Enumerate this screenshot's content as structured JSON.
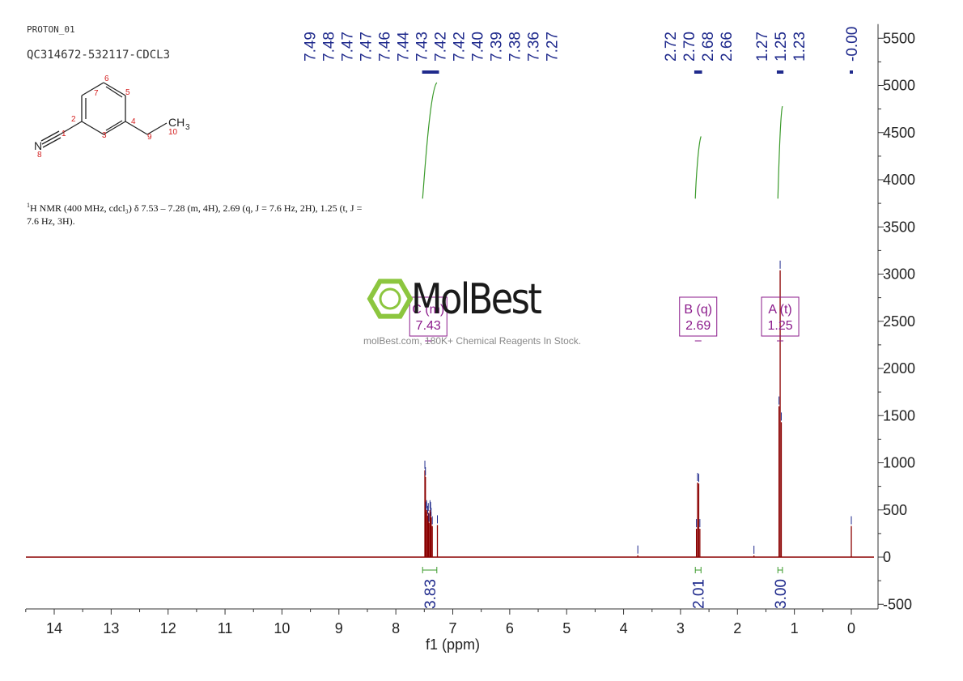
{
  "header": {
    "experiment": "PROTON_01",
    "sample": "QC314672-532117-CDCL3"
  },
  "molecule": {
    "atom_labels": [
      "1",
      "2",
      "3",
      "4",
      "5",
      "6",
      "7",
      "8",
      "9",
      "10"
    ],
    "nitrogen": "N",
    "methyl": "CH",
    "methyl_sub": "3"
  },
  "nmr_description": {
    "superscript": "1",
    "text": "H NMR (400 MHz, cdcl₃) δ 7.53 – 7.28 (m, 4H), 2.69 (q, J = 7.6 Hz, 2H), 1.25 (t, J = 7.6 Hz, 3H)."
  },
  "watermark": {
    "logo_text": "MolBest",
    "tagline": "molBest.com, 180K+ Chemical Reagents In Stock.",
    "logo_color": "#8cc63f"
  },
  "colors": {
    "spectrum": "#8b0000",
    "peak_labels": "#1f2a8c",
    "integrals": "#3a9a2a",
    "multiplets": "#8b1a8b",
    "axis": "#333333"
  },
  "chart_data": {
    "type": "line",
    "title": "",
    "xlabel": "f1 (ppm)",
    "ylabel": "",
    "xlim": [
      14.5,
      -0.4
    ],
    "ylim": [
      -550,
      5650
    ],
    "x_reversed": true,
    "x_ticks": [
      14,
      13,
      12,
      11,
      10,
      9,
      8,
      7,
      6,
      5,
      4,
      3,
      2,
      1,
      0
    ],
    "y_ticks": [
      -500,
      0,
      500,
      1000,
      1500,
      2000,
      2500,
      3000,
      3500,
      4000,
      4500,
      5000,
      5500
    ],
    "grid": false,
    "peaks": [
      {
        "ppm": 7.49,
        "height": 920
      },
      {
        "ppm": 7.48,
        "height": 850
      },
      {
        "ppm": 7.47,
        "height": 480
      },
      {
        "ppm": 7.46,
        "height": 500
      },
      {
        "ppm": 7.44,
        "height": 440
      },
      {
        "ppm": 7.43,
        "height": 470
      },
      {
        "ppm": 7.42,
        "height": 360
      },
      {
        "ppm": 7.4,
        "height": 500
      },
      {
        "ppm": 7.39,
        "height": 480
      },
      {
        "ppm": 7.38,
        "height": 420
      },
      {
        "ppm": 7.36,
        "height": 330
      },
      {
        "ppm": 7.27,
        "height": 340
      },
      {
        "ppm": 3.75,
        "height": 20
      },
      {
        "ppm": 2.72,
        "height": 300
      },
      {
        "ppm": 2.7,
        "height": 790
      },
      {
        "ppm": 2.68,
        "height": 780
      },
      {
        "ppm": 2.66,
        "height": 300
      },
      {
        "ppm": 1.71,
        "height": 18
      },
      {
        "ppm": 1.27,
        "height": 1600
      },
      {
        "ppm": 1.25,
        "height": 3040
      },
      {
        "ppm": 1.23,
        "height": 1430
      },
      {
        "ppm": 0.0,
        "height": 330
      }
    ],
    "peak_labels": [
      {
        "group": "aromatic",
        "values": [
          "7.49",
          "7.48",
          "7.47",
          "7.47",
          "7.46",
          "7.44",
          "7.43",
          "7.42",
          "7.42",
          "7.40",
          "7.39",
          "7.38",
          "7.36",
          "7.27"
        ],
        "range": [
          7.51,
          7.27
        ]
      },
      {
        "group": "quartet",
        "values": [
          "2.72",
          "2.70",
          "2.68",
          "2.66"
        ],
        "range": [
          2.73,
          2.65
        ]
      },
      {
        "group": "triplet",
        "values": [
          "1.27",
          "1.25",
          "1.23"
        ],
        "range": [
          1.28,
          1.22
        ]
      },
      {
        "group": "tms",
        "values": [
          "-0.00"
        ],
        "range": [
          0.0,
          0.0
        ]
      }
    ],
    "integrals": [
      {
        "from": 7.53,
        "to": 7.28,
        "label": "3.83",
        "curve_start": 3800,
        "curve_end": 5030
      },
      {
        "from": 2.74,
        "to": 2.64,
        "label": "2.01",
        "curve_start": 3800,
        "curve_end": 4460
      },
      {
        "from": 1.29,
        "to": 1.21,
        "label": "3.00",
        "curve_start": 3800,
        "curve_end": 4780
      }
    ],
    "multiplets": [
      {
        "letter": "C (m)",
        "shift": "7.43",
        "ppm": 7.43
      },
      {
        "letter": "B (q)",
        "shift": "2.69",
        "ppm": 2.69
      },
      {
        "letter": "A (t)",
        "shift": "1.25",
        "ppm": 1.25
      }
    ]
  }
}
